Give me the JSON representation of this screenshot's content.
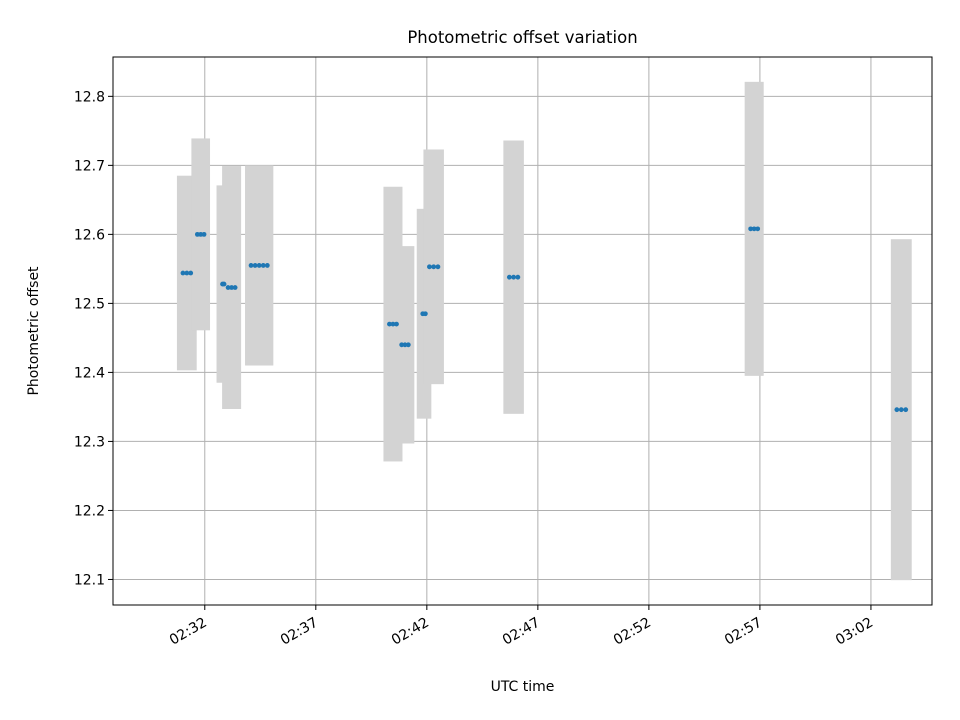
{
  "chart_data": {
    "type": "scatter",
    "title": "Photometric offset variation",
    "xlabel": "UTC time",
    "ylabel": "Photometric offset",
    "x_axis": {
      "type": "time",
      "range": [
        "02:27:52",
        "03:04:45"
      ],
      "ticks": [
        "02:32",
        "02:37",
        "02:42",
        "02:47",
        "02:52",
        "02:57",
        "03:02"
      ],
      "tick_label_rotation": 30
    },
    "y_axis": {
      "range": [
        12.063,
        12.857
      ],
      "ticks": [
        "12.1",
        "12.2",
        "12.3",
        "12.4",
        "12.5",
        "12.6",
        "12.7",
        "12.8"
      ]
    },
    "grid": true,
    "colors": {
      "point": "#1f77b4",
      "error_bar": "#d3d3d3",
      "grid": "#b0b0b0"
    },
    "groups": [
      {
        "x_start": "02:31:01",
        "x_end": "02:31:22",
        "y": 12.544,
        "err": 0.141
      },
      {
        "x_start": "02:31:40",
        "x_end": "02:31:58",
        "y": 12.6,
        "err": 0.139
      },
      {
        "x_start": "02:32:48",
        "x_end": "02:32:52",
        "y": 12.528,
        "err": 0.143
      },
      {
        "x_start": "02:33:03",
        "x_end": "02:33:22",
        "y": 12.523,
        "err": 0.176
      },
      {
        "x_start": "02:34:05",
        "x_end": "02:34:49",
        "y": 12.555,
        "err": 0.145
      },
      {
        "x_start": "02:40:19",
        "x_end": "02:40:38",
        "y": 12.47,
        "err": 0.199
      },
      {
        "x_start": "02:40:52",
        "x_end": "02:41:10",
        "y": 12.44,
        "err": 0.143
      },
      {
        "x_start": "02:41:49",
        "x_end": "02:41:56",
        "y": 12.485,
        "err": 0.152
      },
      {
        "x_start": "02:42:07",
        "x_end": "02:42:30",
        "y": 12.553,
        "err": 0.17
      },
      {
        "x_start": "02:45:43",
        "x_end": "02:46:06",
        "y": 12.538,
        "err": 0.198
      },
      {
        "x_start": "02:56:35",
        "x_end": "02:56:54",
        "y": 12.608,
        "err": 0.213
      },
      {
        "x_start": "03:03:10",
        "x_end": "03:03:34",
        "y": 12.346,
        "err": 0.247
      }
    ]
  }
}
